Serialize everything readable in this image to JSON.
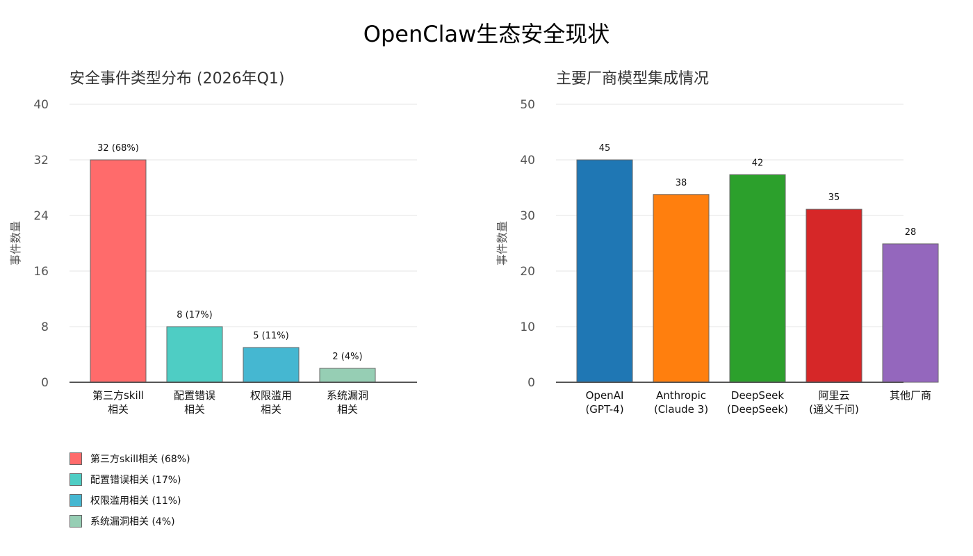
{
  "title": "OpenClaw生态安全现状",
  "chart_data": [
    {
      "type": "bar",
      "title": "安全事件类型分布 (2026年Q1)",
      "ylabel": "事件数量",
      "xlabel": "",
      "ylim": [
        0,
        40
      ],
      "yticks": [
        0,
        8,
        16,
        24,
        32,
        40
      ],
      "categories": [
        [
          "第三方skill",
          "相关"
        ],
        [
          "配置错误",
          "相关"
        ],
        [
          "权限滥用",
          "相关"
        ],
        [
          "系统漏洞",
          "相关"
        ]
      ],
      "values": [
        32,
        8,
        5,
        2
      ],
      "data_labels": [
        "32 (68%)",
        "8 (17%)",
        "5 (11%)",
        "2 (4%)"
      ],
      "colors": [
        "#ff6b6b",
        "#4ecdc4",
        "#45b7d1",
        "#96ceb4"
      ],
      "legend": [
        "第三方skill相关 (68%)",
        "配置错误相关 (17%)",
        "权限滥用相关 (11%)",
        "系统漏洞相关 (4%)"
      ],
      "legend_position": "bottom-left",
      "grid": true
    },
    {
      "type": "bar",
      "title": "主要厂商模型集成情况",
      "ylabel": "事件数量",
      "xlabel": "",
      "ylim": [
        0,
        50
      ],
      "yticks": [
        0,
        10,
        20,
        30,
        40,
        50
      ],
      "categories": [
        [
          "OpenAI",
          "(GPT-4)"
        ],
        [
          "Anthropic",
          "(Claude 3)"
        ],
        [
          "DeepSeek",
          "(DeepSeek)"
        ],
        [
          "阿里云",
          "(通义千问)"
        ],
        [
          "其他厂商"
        ]
      ],
      "values": [
        45,
        38,
        42,
        35,
        28
      ],
      "data_labels": [
        "45",
        "38",
        "42",
        "35",
        "28"
      ],
      "colors": [
        "#1f77b4",
        "#ff7f0e",
        "#2ca02c",
        "#d62728",
        "#9467bd"
      ],
      "grid": true
    }
  ]
}
